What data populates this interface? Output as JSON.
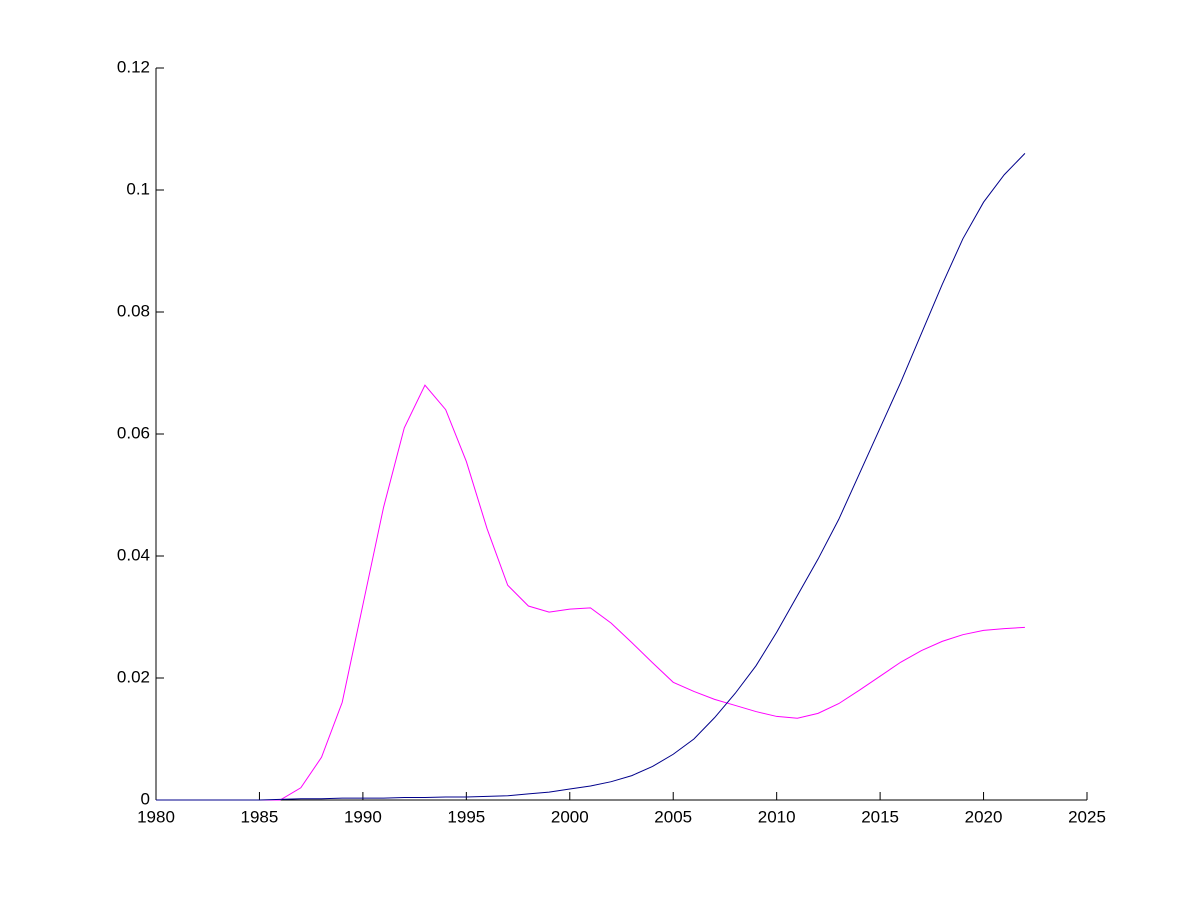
{
  "chart_data": {
    "type": "line",
    "x": [
      1980,
      1981,
      1982,
      1983,
      1984,
      1985,
      1986,
      1987,
      1988,
      1989,
      1990,
      1991,
      1992,
      1993,
      1994,
      1995,
      1996,
      1997,
      1998,
      1999,
      2000,
      2001,
      2002,
      2003,
      2004,
      2005,
      2006,
      2007,
      2008,
      2009,
      2010,
      2011,
      2012,
      2013,
      2014,
      2015,
      2016,
      2017,
      2018,
      2019,
      2020,
      2021,
      2022
    ],
    "series": [
      {
        "color": "#ff00ff",
        "values": [
          0,
          0,
          0,
          0,
          0,
          0,
          0,
          0.002,
          0.007,
          0.016,
          0.032,
          0.048,
          0.061,
          0.068,
          0.064,
          0.0555,
          0.0445,
          0.0352,
          0.0318,
          0.0308,
          0.0313,
          0.0315,
          0.029,
          0.0258,
          0.0225,
          0.0193,
          0.0178,
          0.0165,
          0.0155,
          0.0145,
          0.0137,
          0.0134,
          0.0142,
          0.0158,
          0.018,
          0.0203,
          0.0226,
          0.0245,
          0.026,
          0.0271,
          0.0278,
          0.0281,
          0.0283
        ]
      },
      {
        "color": "#00008b",
        "values": [
          0,
          0,
          0,
          0,
          0,
          0,
          0.0001,
          0.0002,
          0.0002,
          0.0003,
          0.0003,
          0.0003,
          0.0004,
          0.0004,
          0.0005,
          0.0005,
          0.0006,
          0.0007,
          0.001,
          0.0013,
          0.0018,
          0.0023,
          0.003,
          0.004,
          0.0055,
          0.0075,
          0.01,
          0.0135,
          0.0175,
          0.022,
          0.0275,
          0.0335,
          0.0395,
          0.046,
          0.0535,
          0.061,
          0.0685,
          0.0765,
          0.0845,
          0.092,
          0.098,
          0.1025,
          0.106
        ]
      }
    ],
    "xlim": [
      1980,
      2025
    ],
    "xticks": [
      1980,
      1985,
      1990,
      1995,
      2000,
      2005,
      2010,
      2015,
      2020,
      2025
    ],
    "ylim": [
      0,
      0.12
    ],
    "yticks": [
      0,
      0.02,
      0.04,
      0.06,
      0.08,
      0.1,
      0.12
    ]
  }
}
